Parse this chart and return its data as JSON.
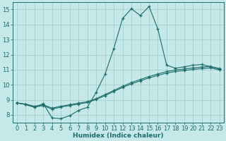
{
  "x": [
    0,
    1,
    2,
    3,
    4,
    5,
    6,
    7,
    8,
    9,
    10,
    11,
    12,
    13,
    14,
    15,
    16,
    17,
    18,
    19,
    20,
    21,
    22,
    23
  ],
  "line1": [
    8.8,
    8.7,
    8.5,
    8.75,
    7.8,
    7.75,
    7.95,
    8.3,
    8.5,
    9.5,
    10.7,
    12.4,
    14.4,
    15.05,
    14.6,
    15.2,
    13.7,
    11.3,
    11.1,
    11.2,
    11.3,
    11.35,
    11.2,
    11.05
  ],
  "line2": [
    8.8,
    8.72,
    8.58,
    8.68,
    8.45,
    8.58,
    8.68,
    8.78,
    8.88,
    9.08,
    9.35,
    9.62,
    9.9,
    10.15,
    10.35,
    10.55,
    10.72,
    10.88,
    10.98,
    11.05,
    11.12,
    11.18,
    11.22,
    11.08
  ],
  "line3": [
    8.8,
    8.68,
    8.52,
    8.62,
    8.38,
    8.52,
    8.62,
    8.72,
    8.82,
    9.02,
    9.28,
    9.56,
    9.82,
    10.06,
    10.26,
    10.46,
    10.62,
    10.78,
    10.88,
    10.95,
    11.02,
    11.08,
    11.12,
    10.98
  ],
  "bg_color": "#c5e8e8",
  "grid_color": "#a8d0d0",
  "line_color": "#1e6b6b",
  "marker": "+",
  "marker_size": 3,
  "linewidth": 0.8,
  "xlim": [
    -0.5,
    23.5
  ],
  "ylim": [
    7.5,
    15.5
  ],
  "yticks": [
    8,
    9,
    10,
    11,
    12,
    13,
    14,
    15
  ],
  "xticks": [
    0,
    1,
    2,
    3,
    4,
    5,
    6,
    7,
    8,
    9,
    10,
    11,
    12,
    13,
    14,
    15,
    16,
    17,
    18,
    19,
    20,
    21,
    22,
    23
  ],
  "xlabel": "Humidex (Indice chaleur)",
  "xlabel_fontsize": 6.5,
  "tick_fontsize": 6.0
}
